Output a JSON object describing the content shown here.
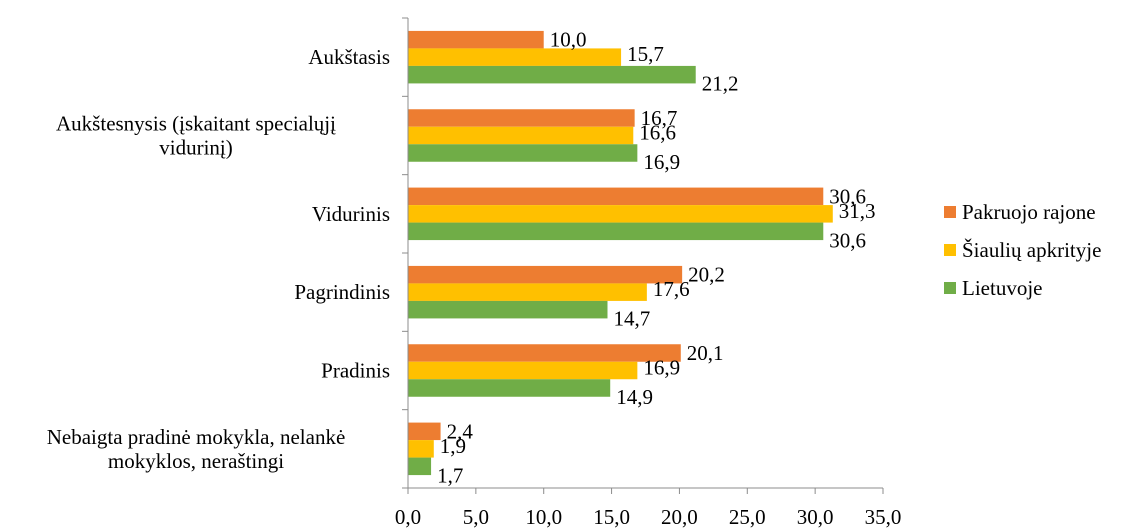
{
  "chart_data": {
    "type": "bar",
    "orientation": "horizontal",
    "title": "",
    "xlabel": "",
    "ylabel": "",
    "categories": [
      [
        "Aukštasis"
      ],
      [
        "Aukštesnysis (įskaitant specialųjį",
        "vidurinį)"
      ],
      [
        "Vidurinis"
      ],
      [
        "Pagrindinis"
      ],
      [
        "Pradinis"
      ],
      [
        "Nebaigta pradinė mokykla, nelankė",
        "mokyklos, neraštingi"
      ]
    ],
    "series": [
      {
        "name": "Pakruojo rajone",
        "color": "#ED7D31",
        "values": [
          10.0,
          16.7,
          30.6,
          20.2,
          20.1,
          2.4
        ],
        "labels": [
          "10,0",
          "16,7",
          "30,6",
          "20,2",
          "20,1",
          "2,4"
        ]
      },
      {
        "name": "Šiaulių apkrityje",
        "color": "#FFC000",
        "values": [
          15.7,
          16.6,
          31.3,
          17.6,
          16.9,
          1.9
        ],
        "labels": [
          "15,7",
          "16,6",
          "31,3",
          "17,6",
          "16,9",
          "1,9"
        ]
      },
      {
        "name": "Lietuvoje",
        "color": "#70AD47",
        "values": [
          21.2,
          16.9,
          30.6,
          14.7,
          14.9,
          1.7
        ],
        "labels": [
          "21,2",
          "16,9",
          "30,6",
          "14,7",
          "14,9",
          "1,7"
        ]
      }
    ],
    "xlim": [
      0,
      35
    ],
    "xticks": [
      "0,0",
      "5,0",
      "10,0",
      "15,0",
      "20,0",
      "25,0",
      "30,0",
      "35,0"
    ],
    "grid": false,
    "legend_position": "right"
  }
}
